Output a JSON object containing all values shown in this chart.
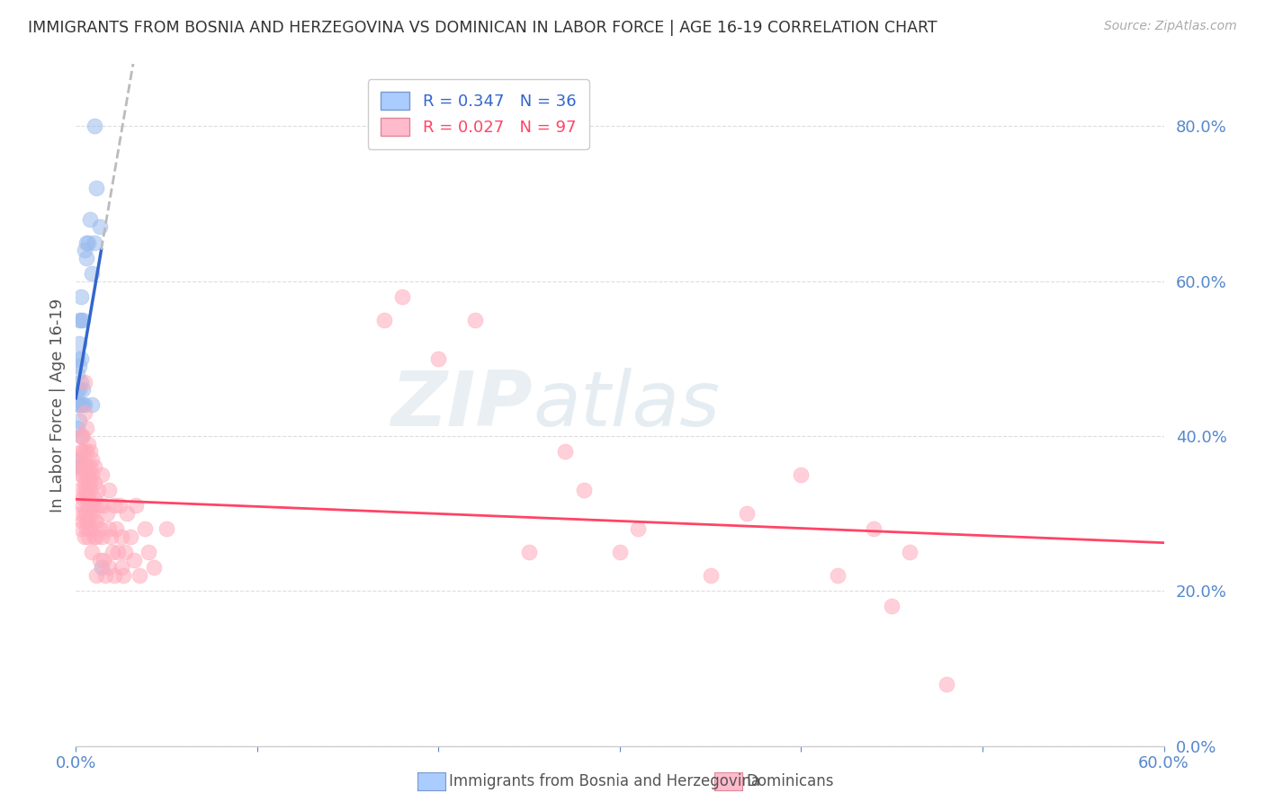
{
  "title": "IMMIGRANTS FROM BOSNIA AND HERZEGOVINA VS DOMINICAN IN LABOR FORCE | AGE 16-19 CORRELATION CHART",
  "source": "Source: ZipAtlas.com",
  "ylabel": "In Labor Force | Age 16-19",
  "watermark_zip": "ZIP",
  "watermark_atlas": "atlas",
  "xlim": [
    0.0,
    0.6
  ],
  "ylim": [
    0.0,
    0.88
  ],
  "bosnia_color": "#99bbee",
  "dominican_color": "#ffaabb",
  "bosnia_line_color": "#3366cc",
  "dominican_line_color": "#ff4466",
  "trendline_dashed_color": "#bbbbbb",
  "bg_color": "#ffffff",
  "grid_color": "#dddddd",
  "tick_color": "#5588cc",
  "title_color": "#333333",
  "ylabel_color": "#555555",
  "bosnia_points": [
    [
      0.001,
      0.36
    ],
    [
      0.001,
      0.41
    ],
    [
      0.001,
      0.44
    ],
    [
      0.001,
      0.46
    ],
    [
      0.001,
      0.48
    ],
    [
      0.001,
      0.5
    ],
    [
      0.002,
      0.37
    ],
    [
      0.002,
      0.42
    ],
    [
      0.002,
      0.44
    ],
    [
      0.002,
      0.46
    ],
    [
      0.002,
      0.49
    ],
    [
      0.002,
      0.52
    ],
    [
      0.002,
      0.55
    ],
    [
      0.003,
      0.4
    ],
    [
      0.003,
      0.44
    ],
    [
      0.003,
      0.47
    ],
    [
      0.003,
      0.5
    ],
    [
      0.003,
      0.55
    ],
    [
      0.003,
      0.58
    ],
    [
      0.004,
      0.44
    ],
    [
      0.004,
      0.46
    ],
    [
      0.004,
      0.55
    ],
    [
      0.005,
      0.36
    ],
    [
      0.005,
      0.44
    ],
    [
      0.005,
      0.64
    ],
    [
      0.006,
      0.63
    ],
    [
      0.006,
      0.65
    ],
    [
      0.007,
      0.65
    ],
    [
      0.008,
      0.68
    ],
    [
      0.009,
      0.44
    ],
    [
      0.009,
      0.61
    ],
    [
      0.01,
      0.65
    ],
    [
      0.011,
      0.72
    ],
    [
      0.013,
      0.67
    ],
    [
      0.014,
      0.23
    ],
    [
      0.01,
      0.8
    ]
  ],
  "dominican_points": [
    [
      0.002,
      0.33
    ],
    [
      0.002,
      0.37
    ],
    [
      0.003,
      0.35
    ],
    [
      0.003,
      0.38
    ],
    [
      0.003,
      0.36
    ],
    [
      0.003,
      0.4
    ],
    [
      0.003,
      0.28
    ],
    [
      0.003,
      0.3
    ],
    [
      0.004,
      0.29
    ],
    [
      0.004,
      0.31
    ],
    [
      0.004,
      0.35
    ],
    [
      0.004,
      0.38
    ],
    [
      0.004,
      0.32
    ],
    [
      0.004,
      0.36
    ],
    [
      0.004,
      0.4
    ],
    [
      0.005,
      0.27
    ],
    [
      0.005,
      0.33
    ],
    [
      0.005,
      0.47
    ],
    [
      0.005,
      0.3
    ],
    [
      0.005,
      0.34
    ],
    [
      0.005,
      0.38
    ],
    [
      0.005,
      0.43
    ],
    [
      0.006,
      0.29
    ],
    [
      0.006,
      0.32
    ],
    [
      0.006,
      0.36
    ],
    [
      0.006,
      0.41
    ],
    [
      0.006,
      0.28
    ],
    [
      0.006,
      0.33
    ],
    [
      0.006,
      0.38
    ],
    [
      0.006,
      0.3
    ],
    [
      0.006,
      0.35
    ],
    [
      0.007,
      0.27
    ],
    [
      0.007,
      0.32
    ],
    [
      0.007,
      0.36
    ],
    [
      0.007,
      0.29
    ],
    [
      0.007,
      0.34
    ],
    [
      0.007,
      0.39
    ],
    [
      0.007,
      0.31
    ],
    [
      0.007,
      0.35
    ],
    [
      0.008,
      0.3
    ],
    [
      0.008,
      0.36
    ],
    [
      0.008,
      0.33
    ],
    [
      0.008,
      0.38
    ],
    [
      0.008,
      0.28
    ],
    [
      0.008,
      0.34
    ],
    [
      0.009,
      0.31
    ],
    [
      0.009,
      0.37
    ],
    [
      0.009,
      0.25
    ],
    [
      0.009,
      0.3
    ],
    [
      0.009,
      0.35
    ],
    [
      0.01,
      0.29
    ],
    [
      0.01,
      0.34
    ],
    [
      0.01,
      0.27
    ],
    [
      0.01,
      0.32
    ],
    [
      0.01,
      0.31
    ],
    [
      0.01,
      0.36
    ],
    [
      0.011,
      0.22
    ],
    [
      0.011,
      0.29
    ],
    [
      0.011,
      0.27
    ],
    [
      0.012,
      0.33
    ],
    [
      0.013,
      0.24
    ],
    [
      0.013,
      0.31
    ],
    [
      0.013,
      0.28
    ],
    [
      0.014,
      0.35
    ],
    [
      0.014,
      0.27
    ],
    [
      0.015,
      0.24
    ],
    [
      0.015,
      0.31
    ],
    [
      0.016,
      0.22
    ],
    [
      0.017,
      0.3
    ],
    [
      0.018,
      0.23
    ],
    [
      0.018,
      0.28
    ],
    [
      0.018,
      0.33
    ],
    [
      0.019,
      0.27
    ],
    [
      0.02,
      0.25
    ],
    [
      0.021,
      0.31
    ],
    [
      0.021,
      0.22
    ],
    [
      0.022,
      0.28
    ],
    [
      0.023,
      0.25
    ],
    [
      0.024,
      0.31
    ],
    [
      0.025,
      0.23
    ],
    [
      0.025,
      0.27
    ],
    [
      0.026,
      0.22
    ],
    [
      0.027,
      0.25
    ],
    [
      0.028,
      0.3
    ],
    [
      0.03,
      0.27
    ],
    [
      0.032,
      0.24
    ],
    [
      0.033,
      0.31
    ],
    [
      0.035,
      0.22
    ],
    [
      0.038,
      0.28
    ],
    [
      0.04,
      0.25
    ],
    [
      0.043,
      0.23
    ],
    [
      0.05,
      0.28
    ],
    [
      0.17,
      0.55
    ],
    [
      0.18,
      0.58
    ],
    [
      0.2,
      0.5
    ],
    [
      0.22,
      0.55
    ],
    [
      0.25,
      0.25
    ],
    [
      0.27,
      0.38
    ],
    [
      0.28,
      0.33
    ],
    [
      0.3,
      0.25
    ],
    [
      0.31,
      0.28
    ],
    [
      0.35,
      0.22
    ],
    [
      0.37,
      0.3
    ],
    [
      0.4,
      0.35
    ],
    [
      0.42,
      0.22
    ],
    [
      0.44,
      0.28
    ],
    [
      0.45,
      0.18
    ],
    [
      0.46,
      0.25
    ],
    [
      0.48,
      0.08
    ]
  ]
}
